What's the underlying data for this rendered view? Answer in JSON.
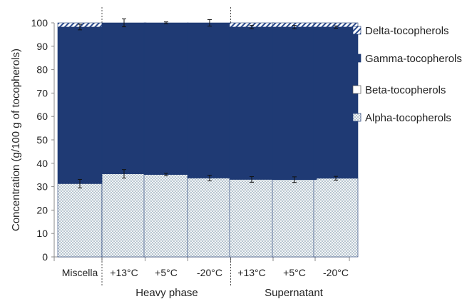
{
  "chart_data": {
    "type": "bar",
    "stacked": true,
    "title": "",
    "xlabel": "",
    "ylabel": "Concentration (g/100 g of tocopherols)",
    "ylim": [
      0,
      100
    ],
    "yticks": [
      0,
      10,
      20,
      30,
      40,
      50,
      60,
      70,
      80,
      90,
      100
    ],
    "grid": false,
    "legend_position": "right",
    "categories": [
      "Miscella",
      "+13°C",
      "+5°C",
      "-20°C",
      "+13°C",
      "+5°C",
      "-20°C"
    ],
    "groups": [
      {
        "label": "Heavy phase",
        "categories": [
          1,
          2,
          3
        ]
      },
      {
        "label": "Supernatant",
        "categories": [
          4,
          5,
          6
        ]
      }
    ],
    "series": [
      {
        "name": "Alpha-tocopherols",
        "pattern": "dense-crosshatch",
        "color": "#8fa6b6",
        "values": [
          31.3,
          35.5,
          35.2,
          33.7,
          33.1,
          33.0,
          33.6
        ],
        "errors": [
          1.8,
          1.8,
          0.5,
          1.2,
          1.2,
          1.2,
          0.8
        ]
      },
      {
        "name": "Beta-tocopherols",
        "pattern": "solid",
        "color": "#ffffff",
        "values": [
          0,
          0,
          0,
          0,
          0,
          0,
          0
        ]
      },
      {
        "name": "Gamma-tocopherols",
        "pattern": "solid",
        "color": "#1f3a74",
        "values": [
          66.9,
          64.5,
          64.8,
          66.3,
          65.1,
          65.2,
          64.6
        ],
        "errors": [
          1.2,
          0,
          0,
          0,
          0.7,
          0.7,
          0.5
        ]
      },
      {
        "name": "Delta-tocopherols",
        "pattern": "diagonal-stripes",
        "color": "#2a4a8c",
        "values": [
          1.8,
          0,
          0,
          0,
          1.8,
          1.8,
          1.8
        ],
        "errors": [
          0,
          1.7,
          0.4,
          1.4,
          0,
          0,
          0
        ]
      }
    ]
  }
}
